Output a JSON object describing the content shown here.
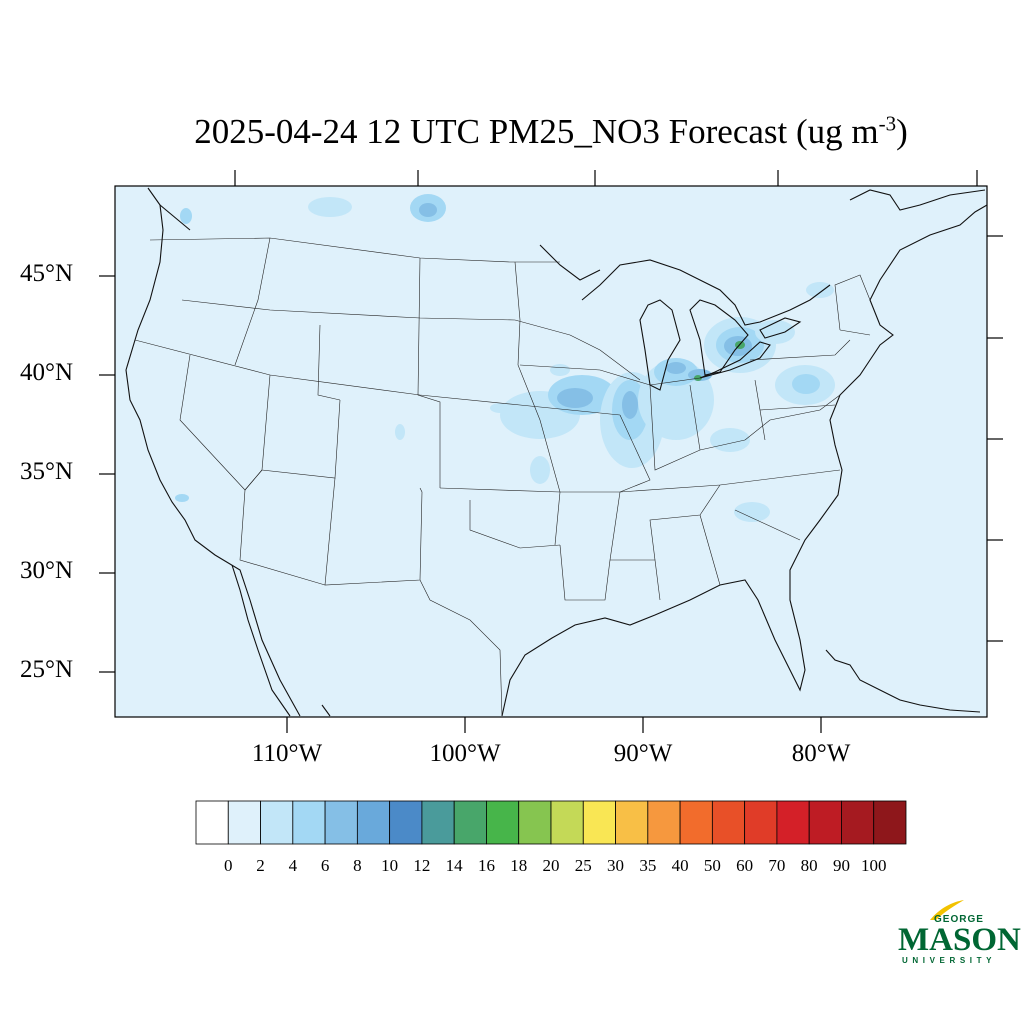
{
  "title": {
    "main": "2025-04-24 12 UTC PM25_NO3 Forecast (ug m",
    "sup": "-3",
    "close": ")"
  },
  "map": {
    "projection": "lambert-conformal",
    "background_color": "#dff1fb",
    "lat_labels": [
      "45°N",
      "40°N",
      "35°N",
      "30°N",
      "25°N"
    ],
    "lon_labels": [
      "110°W",
      "100°W",
      "90°W",
      "80°W"
    ]
  },
  "colorbar": {
    "labels": [
      "0",
      "2",
      "4",
      "6",
      "8",
      "10",
      "12",
      "14",
      "16",
      "18",
      "20",
      "25",
      "30",
      "35",
      "40",
      "50",
      "60",
      "70",
      "80",
      "90",
      "100"
    ],
    "colors": [
      "#ffffff",
      "#dff1fb",
      "#c2e6f8",
      "#a3d8f4",
      "#85bfe6",
      "#69a9db",
      "#4b8ac8",
      "#4a9b9b",
      "#48a66a",
      "#47b54a",
      "#86c550",
      "#c4d957",
      "#f9e654",
      "#f8bf46",
      "#f6983e",
      "#f26c2c",
      "#e85028",
      "#e03c28",
      "#d42028",
      "#be1c24",
      "#a51a20",
      "#8e171b"
    ]
  },
  "logo": {
    "top": "GEORGE",
    "main": "MASON",
    "bottom": "UNIVERSITY"
  }
}
